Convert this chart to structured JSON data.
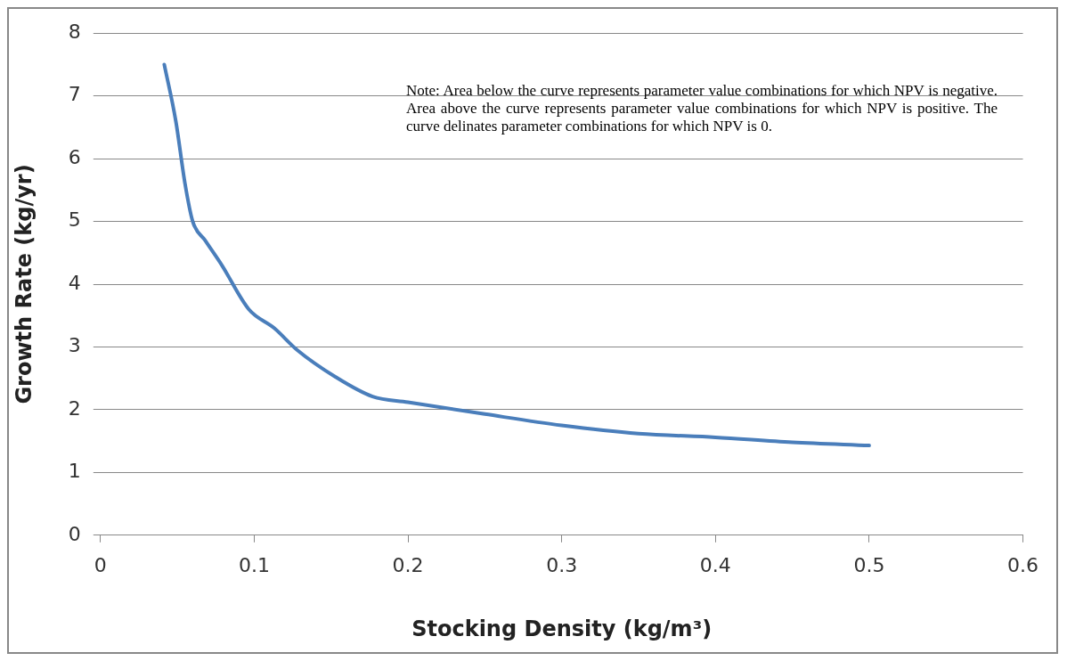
{
  "chart_data": {
    "type": "line",
    "xlabel": "Stocking Density (kg/m³)",
    "ylabel": "Growth Rate (kg/yr)",
    "annotations": [
      "Note: Area below the curve represents parameter value combinations for which NPV is negative.  Area above the curve represents parameter value combinations for which NPV is positive.  The curve delinates parameter combinations for which NPV is 0."
    ],
    "series": [
      {
        "color": "#4a7ebb",
        "x": [
          0.0415,
          0.049,
          0.055,
          0.06,
          0.068,
          0.079,
          0.0965,
          0.113,
          0.128,
          0.153,
          0.177,
          0.2,
          0.25,
          0.3,
          0.35,
          0.4,
          0.45,
          0.5
        ],
        "values": [
          7.5,
          6.6,
          5.6,
          5.0,
          4.7,
          4.3,
          3.6,
          3.3,
          2.95,
          2.52,
          2.21,
          2.12,
          1.93,
          1.75,
          1.62,
          1.56,
          1.48,
          1.43
        ]
      }
    ],
    "xlim": [
      0,
      0.6
    ],
    "xticks": [
      0,
      0.1,
      0.2,
      0.3,
      0.4,
      0.5,
      0.6
    ],
    "ylim": [
      0,
      8
    ],
    "yticks": [
      0,
      1,
      2,
      3,
      4,
      5,
      6,
      7,
      8
    ],
    "grid": "y",
    "legend": false,
    "marker": "none",
    "line_style": "solid"
  }
}
